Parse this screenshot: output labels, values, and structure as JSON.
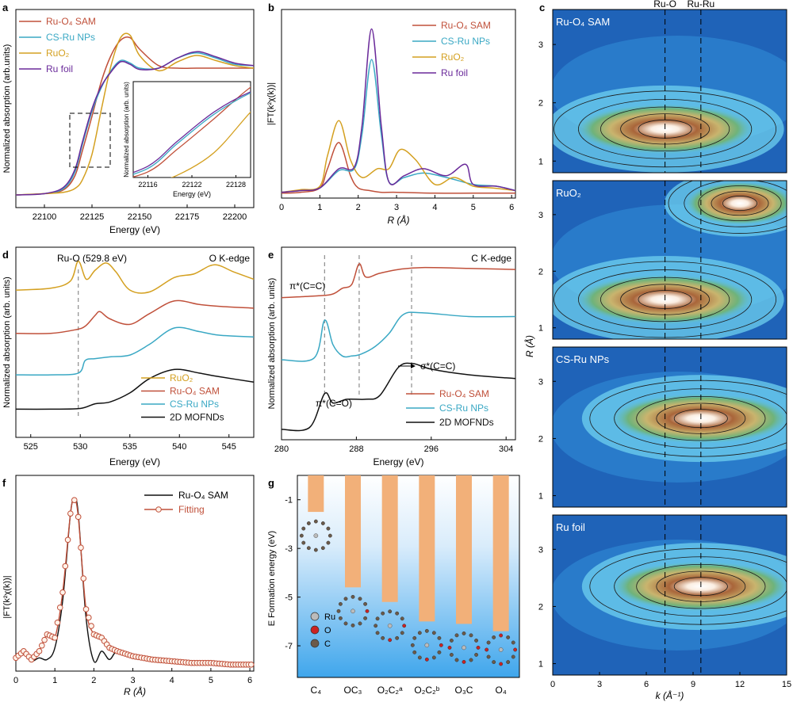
{
  "figure": {
    "panels": {
      "a": "a",
      "b": "b",
      "c": "c",
      "d": "d",
      "e": "e",
      "f": "f",
      "g": "g"
    }
  },
  "colors": {
    "ru_o4_sam": "#c0503a",
    "cs_ru_nps": "#3aa8c4",
    "ruo2": "#d4a020",
    "ru_foil": "#6a2a9a",
    "mofnd": "#111111",
    "bar": "#f2b079",
    "fit_marker": "#c0503a"
  },
  "chart_data": [
    {
      "panel": "a",
      "type": "line",
      "title": "",
      "xlabel": "Energy (eV)",
      "ylabel": "Normalized absorption (arb.units)",
      "xlim": [
        22085,
        22210
      ],
      "x_ticks": [
        "22100",
        "22125",
        "22150",
        "22175",
        "22200"
      ],
      "legend": [
        "Ru-O₄ SAM",
        "CS-Ru NPs",
        "RuO₂",
        "Ru foil"
      ],
      "inset": {
        "xlabel": "Energy (eV)",
        "ylabel": "Normalized absorption (arb. units)",
        "x_ticks": [
          "22116",
          "22122",
          "22128"
        ]
      },
      "series": [
        {
          "name": "Ru-O₄ SAM",
          "x": [
            22085,
            22100,
            22110,
            22116,
            22120,
            22125,
            22130,
            22135,
            22140,
            22145,
            22150,
            22160,
            22170,
            22180,
            22190,
            22200,
            22210
          ],
          "values": [
            0.0,
            0.01,
            0.04,
            0.15,
            0.35,
            0.62,
            0.9,
            1.1,
            1.22,
            1.24,
            1.15,
            1.02,
            1.0,
            1.0,
            1.0,
            1.0,
            1.0
          ]
        },
        {
          "name": "CS-Ru NPs",
          "x": [
            22085,
            22100,
            22110,
            22116,
            22120,
            22125,
            22130,
            22135,
            22140,
            22145,
            22150,
            22160,
            22170,
            22180,
            22190,
            22200,
            22210
          ],
          "values": [
            0.0,
            0.01,
            0.05,
            0.18,
            0.4,
            0.66,
            0.85,
            0.98,
            1.06,
            1.04,
            1.0,
            1.0,
            1.08,
            1.12,
            1.08,
            1.03,
            1.02
          ]
        },
        {
          "name": "RuO₂",
          "x": [
            22085,
            22100,
            22110,
            22116,
            22120,
            22125,
            22130,
            22135,
            22140,
            22145,
            22150,
            22160,
            22170,
            22180,
            22190,
            22200,
            22210
          ],
          "values": [
            0.0,
            0.01,
            0.02,
            0.05,
            0.12,
            0.32,
            0.68,
            1.02,
            1.24,
            1.26,
            1.1,
            0.98,
            1.05,
            1.1,
            1.06,
            1.02,
            1.0
          ]
        },
        {
          "name": "Ru foil",
          "x": [
            22085,
            22100,
            22110,
            22116,
            22120,
            22125,
            22130,
            22135,
            22140,
            22145,
            22150,
            22160,
            22170,
            22180,
            22190,
            22200,
            22210
          ],
          "values": [
            0.0,
            0.01,
            0.06,
            0.2,
            0.42,
            0.68,
            0.86,
            0.97,
            1.05,
            1.03,
            0.99,
            1.0,
            1.08,
            1.13,
            1.09,
            1.04,
            1.02
          ]
        }
      ]
    },
    {
      "panel": "b",
      "type": "line",
      "title": "",
      "xlabel": "R (Å)",
      "ylabel": "|FT(k²χ(k))|",
      "xlim": [
        0,
        6.1
      ],
      "x_ticks": [
        "0",
        "1",
        "2",
        "3",
        "4",
        "5",
        "6"
      ],
      "legend": [
        "Ru-O₄ SAM",
        "CS-Ru NPs",
        "RuO₂",
        "Ru foil"
      ],
      "series": [
        {
          "name": "Ru-O₄ SAM",
          "x": [
            0,
            0.5,
            1.0,
            1.2,
            1.5,
            1.8,
            2.0,
            2.3,
            2.6,
            3.0,
            4.0,
            5.0,
            6.1
          ],
          "values": [
            0.02,
            0.03,
            0.08,
            0.3,
            0.6,
            0.22,
            0.08,
            0.05,
            0.03,
            0.03,
            0.02,
            0.02,
            0.02
          ]
        },
        {
          "name": "CS-Ru NPs",
          "x": [
            0,
            0.5,
            1.0,
            1.5,
            1.9,
            2.1,
            2.35,
            2.6,
            2.8,
            3.2,
            3.7,
            4.3,
            5.0,
            5.6,
            6.1
          ],
          "values": [
            0.03,
            0.05,
            0.08,
            0.28,
            0.3,
            0.7,
            1.55,
            0.7,
            0.15,
            0.2,
            0.25,
            0.2,
            0.12,
            0.1,
            0.05
          ]
        },
        {
          "name": "RuO₂",
          "x": [
            0,
            0.5,
            1.0,
            1.2,
            1.5,
            1.8,
            2.1,
            2.5,
            2.8,
            3.1,
            3.5,
            4.0,
            4.5,
            5.0,
            5.5,
            6.1
          ],
          "values": [
            0.03,
            0.06,
            0.1,
            0.45,
            0.85,
            0.4,
            0.2,
            0.3,
            0.3,
            0.52,
            0.4,
            0.12,
            0.2,
            0.1,
            0.08,
            0.05
          ]
        },
        {
          "name": "Ru foil",
          "x": [
            0,
            0.5,
            1.0,
            1.5,
            1.9,
            2.1,
            2.35,
            2.6,
            2.8,
            3.2,
            3.7,
            4.3,
            4.8,
            5.0,
            5.6,
            6.1
          ],
          "values": [
            0.03,
            0.05,
            0.08,
            0.3,
            0.32,
            0.8,
            1.9,
            0.8,
            0.15,
            0.22,
            0.3,
            0.22,
            0.35,
            0.12,
            0.1,
            0.05
          ]
        }
      ]
    },
    {
      "panel": "c",
      "type": "heatmap",
      "title": "",
      "xlabel": "k (Å⁻¹)",
      "ylabel": "R (Å)",
      "xlim": [
        0,
        15
      ],
      "x_ticks": [
        "0",
        "3",
        "6",
        "9",
        "12",
        "15"
      ],
      "y_ticks": [
        "1",
        "2",
        "3"
      ],
      "reference_lines": [
        {
          "label": "Ru-O",
          "k": 7.2
        },
        {
          "label": "Ru-Ru",
          "k": 9.5
        }
      ],
      "subpanels": [
        {
          "label": "Ru-O₄ SAM",
          "peaks": [
            {
              "k": 7.2,
              "R": 1.55,
              "intensity": 1.0
            }
          ]
        },
        {
          "label": "RuO₂",
          "peaks": [
            {
              "k": 7.2,
              "R": 1.5,
              "intensity": 1.0
            },
            {
              "k": 12.0,
              "R": 3.2,
              "intensity": 0.6
            }
          ]
        },
        {
          "label": "CS-Ru NPs",
          "peaks": [
            {
              "k": 9.5,
              "R": 2.35,
              "intensity": 1.0
            }
          ]
        },
        {
          "label": "Ru foil",
          "peaks": [
            {
              "k": 9.5,
              "R": 2.35,
              "intensity": 1.0
            }
          ]
        }
      ]
    },
    {
      "panel": "d",
      "type": "line",
      "title": "O K-edge",
      "xlabel": "Energy (eV)",
      "ylabel": "Normalized absorption (arb. units)",
      "xlim": [
        523.5,
        547.5
      ],
      "x_ticks": [
        "525",
        "530",
        "535",
        "540",
        "545"
      ],
      "annotation": "Ru-O (529.8 eV)",
      "annotation_x": 529.8,
      "legend": [
        "RuO₂",
        "Ru-O₄ SAM",
        "CS-Ru NPs",
        "2D MOFNDs"
      ],
      "series": [
        {
          "name": "RuO₂",
          "x": [
            523.5,
            527,
            529,
            529.8,
            530.6,
            531.5,
            532.6,
            533.6,
            535,
            537,
            539.5,
            541.5,
            543.5,
            545.5,
            547.5
          ],
          "values": [
            4.25,
            4.3,
            4.5,
            5.05,
            4.55,
            4.8,
            5.0,
            4.75,
            4.25,
            4.2,
            4.6,
            4.7,
            4.95,
            4.75,
            4.55
          ]
        },
        {
          "name": "Ru-O₄ SAM",
          "x": [
            523.5,
            527,
            529.5,
            530.5,
            531.5,
            532,
            533,
            535,
            537,
            539.5,
            542,
            544,
            547.5
          ],
          "values": [
            3.05,
            3.05,
            3.15,
            3.25,
            3.55,
            3.65,
            3.45,
            3.3,
            3.6,
            3.95,
            3.85,
            3.8,
            3.75
          ]
        },
        {
          "name": "CS-Ru NPs",
          "x": [
            523.5,
            527,
            529.8,
            530.5,
            531.5,
            533,
            535,
            537,
            539.5,
            542,
            544,
            547.5
          ],
          "values": [
            1.9,
            1.9,
            1.95,
            2.3,
            2.35,
            2.4,
            2.45,
            2.75,
            3.2,
            3.1,
            3.0,
            2.95
          ]
        },
        {
          "name": "2D MOFNDs",
          "x": [
            523.5,
            527,
            530,
            531.5,
            533,
            535,
            537,
            539.5,
            542,
            544,
            547.5
          ],
          "values": [
            0.95,
            0.95,
            0.97,
            1.1,
            1.15,
            1.4,
            1.8,
            2.05,
            1.95,
            1.85,
            1.7
          ]
        }
      ]
    },
    {
      "panel": "e",
      "type": "line",
      "title": "C K-edge",
      "xlabel": "Energy (eV)",
      "ylabel": "Normalized absorption (arb. units)",
      "xlim": [
        280,
        305
      ],
      "x_ticks": [
        "280",
        "288",
        "296",
        "304"
      ],
      "annotations": [
        "π*(C=C)",
        "π*(C=O)",
        "σ*(C=C)"
      ],
      "legend": [
        "Ru-O₄ SAM",
        "CS-Ru NPs",
        "2D MOFNDs"
      ],
      "series": [
        {
          "name": "Ru-O₄ SAM",
          "x": [
            280,
            284,
            285.5,
            286.5,
            287.5,
            288.3,
            289,
            290.5,
            292.5,
            295,
            300,
            305
          ],
          "values": [
            3.5,
            3.55,
            3.6,
            3.75,
            3.85,
            4.4,
            4.05,
            4.15,
            4.25,
            4.3,
            4.28,
            4.25
          ]
        },
        {
          "name": "CS-Ru NPs",
          "x": [
            280,
            283.5,
            284.6,
            285.5,
            286.5,
            287.5,
            288.5,
            290,
            291.5,
            293,
            295,
            300,
            305
          ],
          "values": [
            1.85,
            1.9,
            2.9,
            2.25,
            1.95,
            1.95,
            2.0,
            2.2,
            2.55,
            3.05,
            3.1,
            3.0,
            3.0
          ]
        },
        {
          "name": "2D MOFNDs",
          "x": [
            280,
            283,
            284.6,
            285.5,
            287,
            289,
            290.5,
            292.5,
            294,
            296,
            300,
            305
          ],
          "values": [
            0.0,
            0.05,
            0.95,
            0.7,
            0.8,
            0.8,
            0.9,
            1.65,
            1.75,
            1.6,
            1.45,
            1.35
          ]
        }
      ]
    },
    {
      "panel": "f",
      "type": "line",
      "title": "",
      "xlabel": "R (Å)",
      "ylabel": "|FT(k²χ(k))|",
      "xlim": [
        0,
        6.1
      ],
      "x_ticks": [
        "0",
        "1",
        "2",
        "3",
        "4",
        "5",
        "6"
      ],
      "legend": [
        "Ru-O₄ SAM",
        "Fitting"
      ],
      "series": [
        {
          "name": "Ru-O₄ SAM",
          "x": [
            0,
            0.2,
            0.4,
            0.6,
            0.8,
            1.0,
            1.2,
            1.4,
            1.5,
            1.6,
            1.8,
            2.0,
            2.2,
            2.4,
            2.6,
            3.0,
            3.5,
            4.0,
            4.5,
            5.0,
            5.5,
            6.1
          ],
          "values": [
            0.05,
            0.08,
            0.04,
            0.06,
            0.05,
            0.12,
            0.4,
            0.92,
            1.0,
            0.92,
            0.3,
            0.04,
            0.1,
            0.05,
            0.1,
            0.08,
            0.06,
            0.04,
            0.04,
            0.03,
            0.03,
            0.02
          ]
        },
        {
          "name": "Fitting",
          "x": [
            0,
            0.2,
            0.4,
            0.6,
            0.8,
            1.0,
            1.2,
            1.4,
            1.5,
            1.6,
            1.8,
            2.0,
            2.2,
            2.4,
            2.6,
            3.0,
            3.5,
            4.0,
            4.5,
            5.0,
            5.5,
            6.1
          ],
          "values": [
            0.06,
            0.1,
            0.05,
            0.1,
            0.2,
            0.18,
            0.45,
            0.92,
            1.0,
            0.9,
            0.35,
            0.2,
            0.18,
            0.12,
            0.1,
            0.07,
            0.05,
            0.04,
            0.03,
            0.03,
            0.02,
            0.02
          ]
        }
      ]
    },
    {
      "panel": "g",
      "type": "bar",
      "title": "",
      "xlabel": "",
      "ylabel": "E Formation energy (eV)",
      "ylim": [
        -8.3,
        0
      ],
      "y_ticks": [
        "-1",
        "-3",
        "-5",
        "-7"
      ],
      "categories": [
        "C₄",
        "OC₃",
        "O₂C₂ᵃ",
        "O₂C₂ᵇ",
        "O₃C",
        "O₄"
      ],
      "values": [
        -1.5,
        -4.6,
        -5.2,
        -6.0,
        -6.1,
        -6.4
      ],
      "legend": [
        "Ru",
        "O",
        "C"
      ]
    }
  ]
}
